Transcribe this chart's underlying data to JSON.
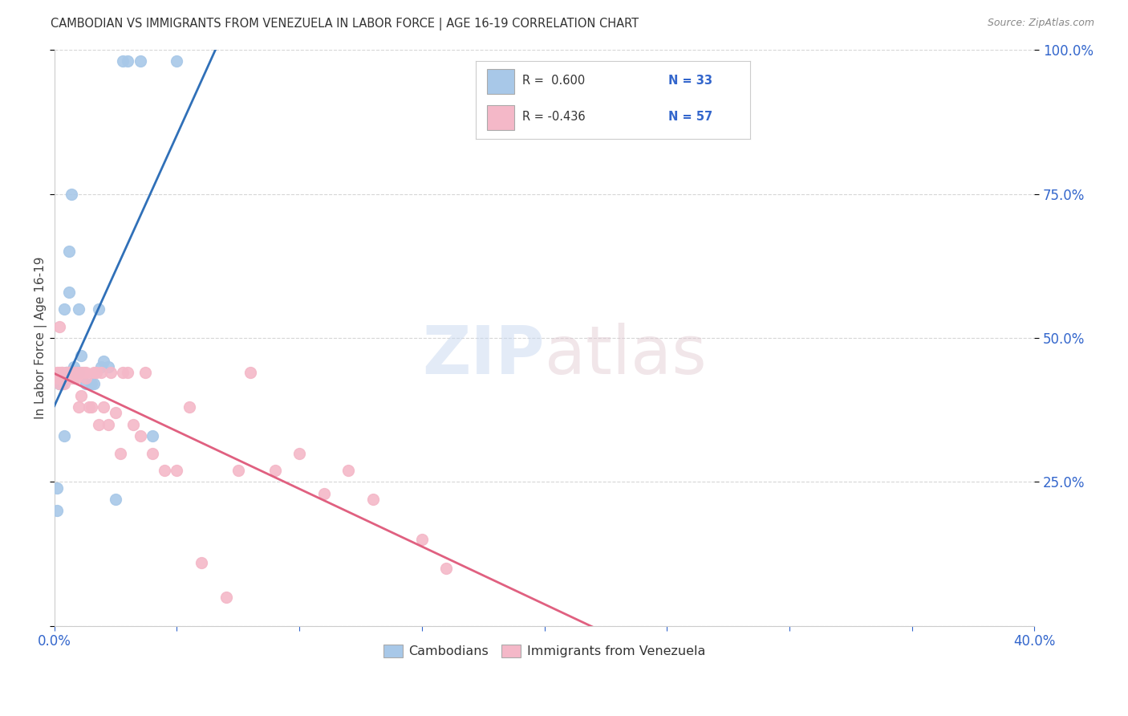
{
  "title": "CAMBODIAN VS IMMIGRANTS FROM VENEZUELA IN LABOR FORCE | AGE 16-19 CORRELATION CHART",
  "source": "Source: ZipAtlas.com",
  "ylabel": "In Labor Force | Age 16-19",
  "legend_blue_r": "R =  0.600",
  "legend_blue_n": "N = 33",
  "legend_pink_r": "R = -0.436",
  "legend_pink_n": "N = 57",
  "legend_label_blue": "Cambodians",
  "legend_label_pink": "Immigrants from Venezuela",
  "x_min": 0.0,
  "x_max": 0.4,
  "y_min": 0.0,
  "y_max": 1.0,
  "background_color": "#ffffff",
  "blue_color": "#a8c8e8",
  "pink_color": "#f4b8c8",
  "blue_line_color": "#3070b8",
  "pink_line_color": "#e06080",
  "cam_x": [
    0.001,
    0.001,
    0.002,
    0.002,
    0.003,
    0.003,
    0.003,
    0.003,
    0.004,
    0.004,
    0.005,
    0.005,
    0.006,
    0.006,
    0.007,
    0.008,
    0.009,
    0.01,
    0.01,
    0.011,
    0.013,
    0.015,
    0.016,
    0.018,
    0.019,
    0.02,
    0.022,
    0.025,
    0.028,
    0.03,
    0.035,
    0.04,
    0.05
  ],
  "cam_y": [
    0.2,
    0.24,
    0.42,
    0.42,
    0.42,
    0.42,
    0.42,
    0.42,
    0.33,
    0.55,
    0.44,
    0.44,
    0.65,
    0.58,
    0.75,
    0.45,
    0.44,
    0.44,
    0.55,
    0.47,
    0.42,
    0.42,
    0.42,
    0.55,
    0.45,
    0.46,
    0.45,
    0.22,
    0.98,
    0.98,
    0.98,
    0.33,
    0.98
  ],
  "ven_x": [
    0.001,
    0.001,
    0.002,
    0.002,
    0.002,
    0.003,
    0.003,
    0.004,
    0.004,
    0.005,
    0.005,
    0.006,
    0.006,
    0.007,
    0.007,
    0.008,
    0.008,
    0.009,
    0.009,
    0.01,
    0.01,
    0.011,
    0.011,
    0.012,
    0.013,
    0.013,
    0.014,
    0.015,
    0.016,
    0.017,
    0.018,
    0.019,
    0.02,
    0.022,
    0.023,
    0.025,
    0.027,
    0.028,
    0.03,
    0.032,
    0.035,
    0.037,
    0.04,
    0.045,
    0.05,
    0.055,
    0.06,
    0.07,
    0.075,
    0.08,
    0.09,
    0.1,
    0.11,
    0.12,
    0.13,
    0.15,
    0.16
  ],
  "ven_y": [
    0.44,
    0.43,
    0.52,
    0.44,
    0.42,
    0.44,
    0.44,
    0.42,
    0.43,
    0.44,
    0.43,
    0.44,
    0.44,
    0.44,
    0.43,
    0.44,
    0.43,
    0.44,
    0.43,
    0.44,
    0.38,
    0.4,
    0.44,
    0.44,
    0.44,
    0.43,
    0.38,
    0.38,
    0.44,
    0.44,
    0.35,
    0.44,
    0.38,
    0.35,
    0.44,
    0.37,
    0.3,
    0.44,
    0.44,
    0.35,
    0.33,
    0.44,
    0.3,
    0.27,
    0.27,
    0.38,
    0.11,
    0.05,
    0.27,
    0.44,
    0.27,
    0.3,
    0.23,
    0.27,
    0.22,
    0.15,
    0.1
  ]
}
